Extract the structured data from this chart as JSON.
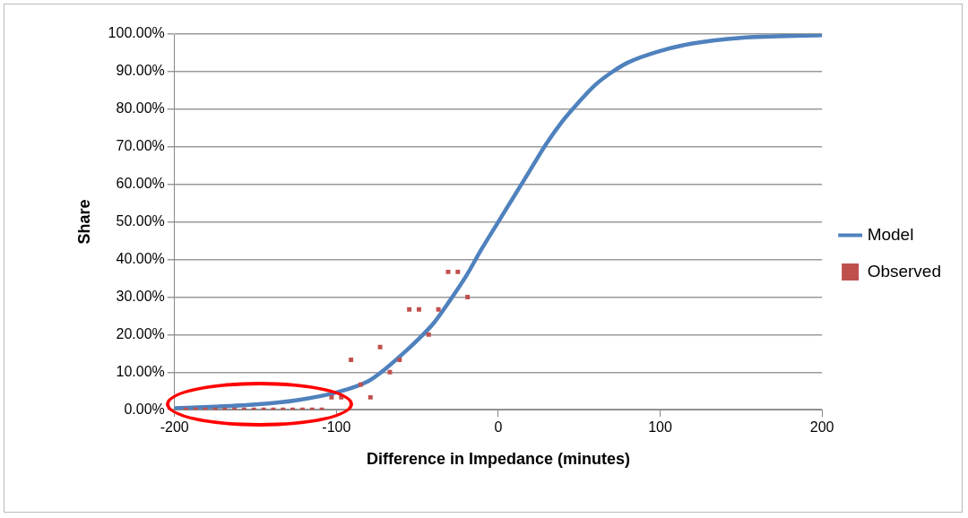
{
  "chart_data": {
    "type": "line",
    "xlabel": "Difference in Impedance (minutes)",
    "ylabel": "Share",
    "xlim": [
      -200,
      200
    ],
    "xticks": [
      -200,
      -100,
      0,
      100,
      200
    ],
    "ylim": [
      0,
      100
    ],
    "yticks": [
      {
        "value": 0,
        "label": "0.00%"
      },
      {
        "value": 10,
        "label": "10.00%"
      },
      {
        "value": 20,
        "label": "20.00%"
      },
      {
        "value": 30,
        "label": "30.00%"
      },
      {
        "value": 40,
        "label": "40.00%"
      },
      {
        "value": 50,
        "label": "50.00%"
      },
      {
        "value": 60,
        "label": "60.00%"
      },
      {
        "value": 70,
        "label": "70.00%"
      },
      {
        "value": 80,
        "label": "80.00%"
      },
      {
        "value": 90,
        "label": "90.00%"
      },
      {
        "value": 100,
        "label": "100.00%"
      }
    ],
    "grid": "y",
    "legend": "right",
    "series": [
      {
        "name": "Model",
        "color": "#4f81bd",
        "marker": "none",
        "x": [
          -200,
          -175,
          -150,
          -125,
          -100,
          -80,
          -70,
          -60,
          -50,
          -40,
          -30,
          -20,
          -10,
          0,
          10,
          20,
          30,
          40,
          50,
          60,
          70,
          80,
          100,
          120,
          150,
          200
        ],
        "values": [
          0.4,
          0.8,
          1.4,
          2.5,
          4.6,
          7.7,
          10.8,
          14.5,
          18.5,
          23,
          29,
          35.5,
          43,
          50,
          57,
          64,
          71,
          77,
          82,
          86.5,
          89.8,
          92.4,
          95.5,
          97.5,
          99,
          99.7
        ]
      },
      {
        "name": "Observed",
        "type": "scatter",
        "color": "#c0504d",
        "marker": "square",
        "x": [
          -193,
          -187,
          -181,
          -175,
          -169,
          -163,
          -157,
          -151,
          -145,
          -139,
          -133,
          -127,
          -121,
          -115,
          -109,
          -103,
          -97,
          -91,
          -85,
          -79,
          -73,
          -67,
          -61,
          -55,
          -49,
          -43,
          -37,
          -31,
          -25,
          -19
        ],
        "values": [
          0,
          0,
          0,
          0,
          0,
          0,
          0,
          0,
          0,
          0,
          0,
          0,
          0,
          0,
          0,
          3.3,
          3.3,
          13.3,
          6.7,
          3.3,
          16.7,
          10,
          13.3,
          26.7,
          26.7,
          20,
          26.7,
          36.7,
          36.7,
          30
        ]
      }
    ]
  }
}
